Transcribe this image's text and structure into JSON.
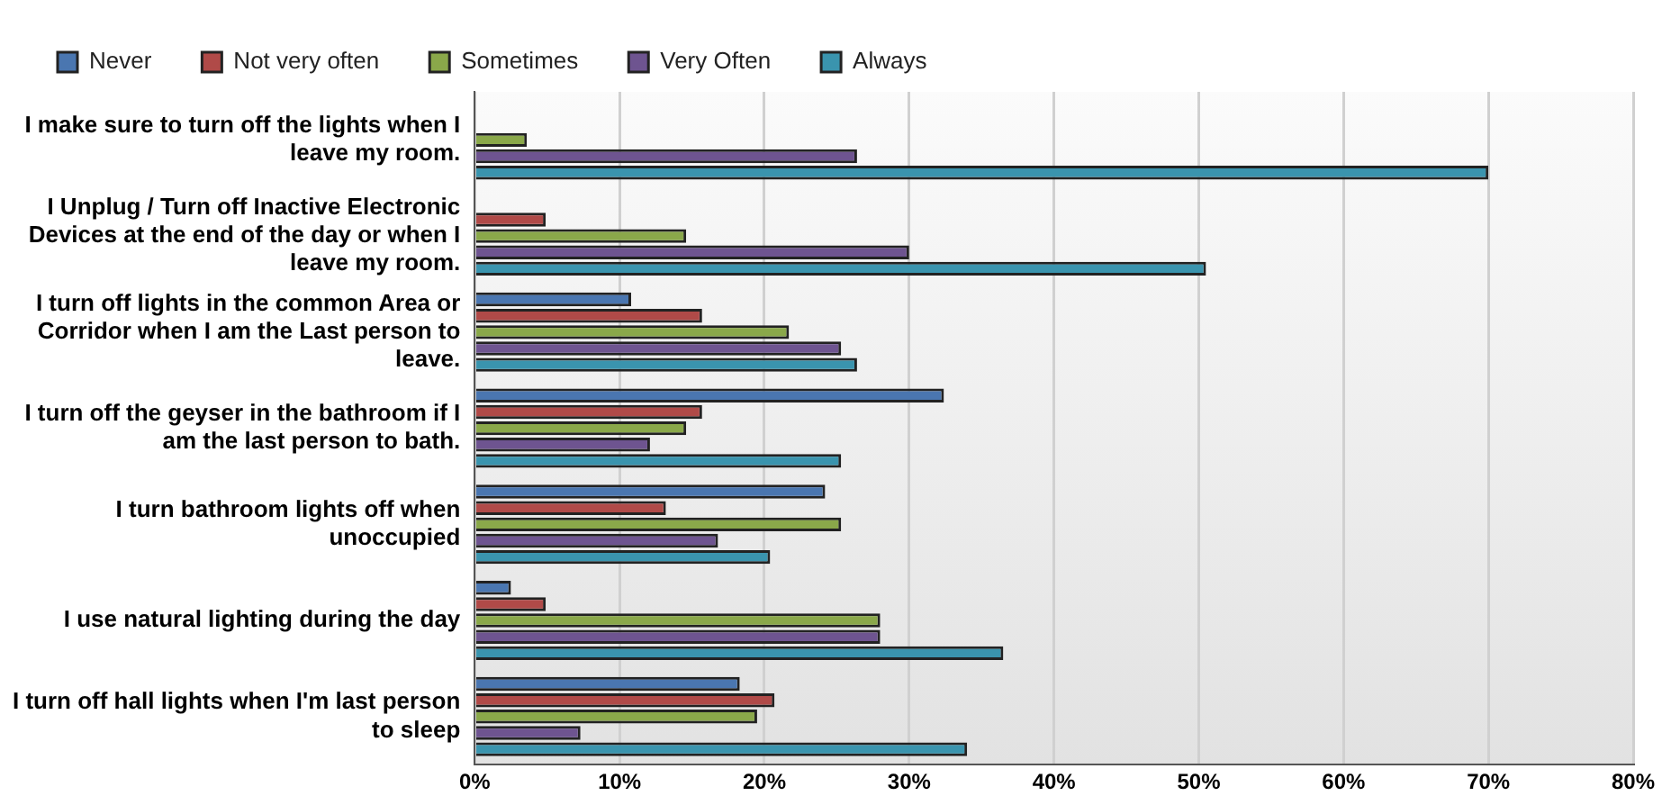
{
  "chart_data": {
    "type": "bar",
    "orientation": "horizontal",
    "categories": [
      "I make sure to turn off the lights when I leave my room.",
      "I Unplug / Turn off Inactive Electronic Devices at the end of the day or when I leave my room.",
      "I turn off lights in the common Area or Corridor when I am the Last person to leave.",
      "I turn off the geyser in the bathroom if I am the last person to bath.",
      "I turn bathroom lights off when unoccupied",
      "I use natural lighting during the day",
      "I turn off hall lights when I'm last person to sleep"
    ],
    "series": [
      {
        "name": "Never",
        "color": "#4a76b0",
        "values": [
          null,
          null,
          10.8,
          32.4,
          24.2,
          2.5,
          18.3
        ]
      },
      {
        "name": "Not very often",
        "color": "#b04a48",
        "values": [
          null,
          4.9,
          15.7,
          15.7,
          13.2,
          4.9,
          20.7
        ]
      },
      {
        "name": "Sometimes",
        "color": "#8aa84a",
        "values": [
          3.6,
          14.6,
          21.7,
          14.6,
          25.3,
          28.0,
          19.5
        ]
      },
      {
        "name": "Very Often",
        "color": "#6e5490",
        "values": [
          26.4,
          30.0,
          25.3,
          12.1,
          16.8,
          28.0,
          7.3
        ]
      },
      {
        "name": "Always",
        "color": "#3a94ae",
        "values": [
          70,
          50.5,
          26.4,
          25.3,
          20.4,
          36.5,
          34.0
        ]
      }
    ],
    "xlim": [
      0,
      80
    ],
    "xticks": [
      {
        "value": 0,
        "label": "0%"
      },
      {
        "value": 10,
        "label": "10%"
      },
      {
        "value": 20,
        "label": "20%"
      },
      {
        "value": 30,
        "label": "30%"
      },
      {
        "value": 40,
        "label": "40%"
      },
      {
        "value": 50,
        "label": "50%"
      },
      {
        "value": 60,
        "label": "60%"
      },
      {
        "value": 70,
        "label": "70%"
      },
      {
        "value": 80,
        "label": "80%"
      }
    ],
    "grid": "x",
    "legend": "top left"
  }
}
